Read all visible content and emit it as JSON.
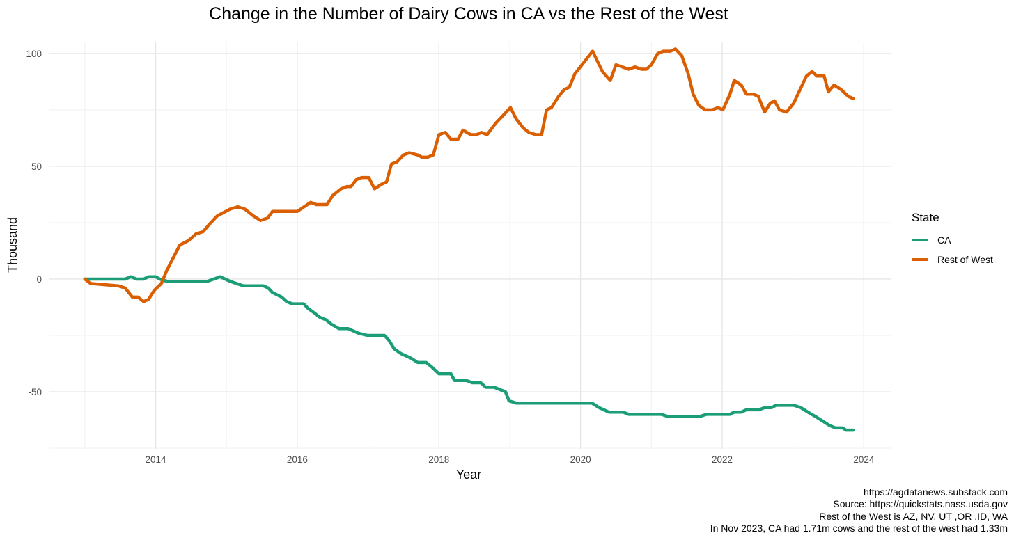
{
  "chart_data": {
    "type": "line",
    "title": "Change in the Number of Dairy Cows in CA vs the Rest of the West",
    "xlabel": "Year",
    "ylabel": "Thousand",
    "xlim": [
      2012.49,
      2024.39
    ],
    "ylim": [
      -75.3,
      105.2
    ],
    "x_ticks": [
      2014,
      2016,
      2018,
      2020,
      2022,
      2024
    ],
    "y_ticks": [
      -50,
      0,
      50,
      100
    ],
    "grid": true,
    "legend": {
      "title": "State",
      "placement": "right"
    },
    "series": [
      {
        "name": "CA",
        "color": "#1b9e77",
        "points": [
          [
            2013.0,
            0
          ],
          [
            2013.57,
            0
          ],
          [
            2013.65,
            1
          ],
          [
            2013.73,
            0
          ],
          [
            2013.83,
            0
          ],
          [
            2013.9,
            1
          ],
          [
            2014.0,
            1
          ],
          [
            2014.06,
            0
          ],
          [
            2014.16,
            -1
          ],
          [
            2014.73,
            -1
          ],
          [
            2014.91,
            1
          ],
          [
            2015.05,
            -1
          ],
          [
            2015.24,
            -3
          ],
          [
            2015.52,
            -3
          ],
          [
            2015.59,
            -4
          ],
          [
            2015.65,
            -6
          ],
          [
            2015.78,
            -8
          ],
          [
            2015.85,
            -10
          ],
          [
            2015.93,
            -11
          ],
          [
            2016.09,
            -11
          ],
          [
            2016.15,
            -13
          ],
          [
            2016.24,
            -15
          ],
          [
            2016.32,
            -17
          ],
          [
            2016.4,
            -18
          ],
          [
            2016.48,
            -20
          ],
          [
            2016.59,
            -22
          ],
          [
            2016.72,
            -22
          ],
          [
            2016.86,
            -24
          ],
          [
            2016.99,
            -25
          ],
          [
            2017.23,
            -25
          ],
          [
            2017.29,
            -27
          ],
          [
            2017.37,
            -31
          ],
          [
            2017.46,
            -33
          ],
          [
            2017.6,
            -35
          ],
          [
            2017.7,
            -37
          ],
          [
            2017.82,
            -37
          ],
          [
            2017.9,
            -39
          ],
          [
            2018.0,
            -42
          ],
          [
            2018.17,
            -42
          ],
          [
            2018.22,
            -45
          ],
          [
            2018.39,
            -45
          ],
          [
            2018.47,
            -46
          ],
          [
            2018.59,
            -46
          ],
          [
            2018.66,
            -48
          ],
          [
            2018.78,
            -48
          ],
          [
            2018.94,
            -50
          ],
          [
            2018.99,
            -54
          ],
          [
            2019.09,
            -55
          ],
          [
            2020.16,
            -55
          ],
          [
            2020.26,
            -57
          ],
          [
            2020.4,
            -59
          ],
          [
            2020.6,
            -59
          ],
          [
            2020.68,
            -60
          ],
          [
            2021.14,
            -60
          ],
          [
            2021.24,
            -61
          ],
          [
            2021.68,
            -61
          ],
          [
            2021.78,
            -60
          ],
          [
            2022.11,
            -60
          ],
          [
            2022.17,
            -59
          ],
          [
            2022.27,
            -59
          ],
          [
            2022.34,
            -58
          ],
          [
            2022.52,
            -58
          ],
          [
            2022.6,
            -57
          ],
          [
            2022.7,
            -57
          ],
          [
            2022.76,
            -56
          ],
          [
            2023.01,
            -56
          ],
          [
            2023.11,
            -57
          ],
          [
            2023.21,
            -59
          ],
          [
            2023.32,
            -61
          ],
          [
            2023.42,
            -63
          ],
          [
            2023.52,
            -65
          ],
          [
            2023.6,
            -66
          ],
          [
            2023.7,
            -66
          ],
          [
            2023.75,
            -67
          ],
          [
            2023.85,
            -67
          ]
        ]
      },
      {
        "name": "Rest of West",
        "color": "#d95f02",
        "points": [
          [
            2013.0,
            0
          ],
          [
            2013.08,
            -2
          ],
          [
            2013.47,
            -3
          ],
          [
            2013.57,
            -4
          ],
          [
            2013.67,
            -8
          ],
          [
            2013.75,
            -8
          ],
          [
            2013.83,
            -10
          ],
          [
            2013.9,
            -9
          ],
          [
            2013.98,
            -5
          ],
          [
            2014.08,
            -2
          ],
          [
            2014.16,
            4
          ],
          [
            2014.34,
            15
          ],
          [
            2014.46,
            17
          ],
          [
            2014.57,
            20
          ],
          [
            2014.67,
            21
          ],
          [
            2014.75,
            24
          ],
          [
            2014.87,
            28
          ],
          [
            2015.05,
            31
          ],
          [
            2015.16,
            32
          ],
          [
            2015.26,
            31
          ],
          [
            2015.38,
            28
          ],
          [
            2015.48,
            26
          ],
          [
            2015.58,
            27
          ],
          [
            2015.65,
            30
          ],
          [
            2016.0,
            30
          ],
          [
            2016.19,
            34
          ],
          [
            2016.27,
            33
          ],
          [
            2016.42,
            33
          ],
          [
            2016.5,
            37
          ],
          [
            2016.62,
            40
          ],
          [
            2016.7,
            41
          ],
          [
            2016.76,
            41
          ],
          [
            2016.83,
            44
          ],
          [
            2016.91,
            45
          ],
          [
            2017.01,
            45
          ],
          [
            2017.09,
            40
          ],
          [
            2017.19,
            42
          ],
          [
            2017.26,
            43
          ],
          [
            2017.33,
            51
          ],
          [
            2017.41,
            52
          ],
          [
            2017.5,
            55
          ],
          [
            2017.58,
            56
          ],
          [
            2017.7,
            55
          ],
          [
            2017.76,
            54
          ],
          [
            2017.84,
            54
          ],
          [
            2017.92,
            55
          ],
          [
            2018.0,
            64
          ],
          [
            2018.09,
            65
          ],
          [
            2018.17,
            62
          ],
          [
            2018.27,
            62
          ],
          [
            2018.34,
            66
          ],
          [
            2018.45,
            64
          ],
          [
            2018.53,
            64
          ],
          [
            2018.6,
            65
          ],
          [
            2018.68,
            64
          ],
          [
            2018.8,
            69
          ],
          [
            2018.92,
            73
          ],
          [
            2019.01,
            76
          ],
          [
            2019.09,
            71
          ],
          [
            2019.19,
            67
          ],
          [
            2019.27,
            65
          ],
          [
            2019.37,
            64
          ],
          [
            2019.45,
            64
          ],
          [
            2019.52,
            75
          ],
          [
            2019.59,
            76
          ],
          [
            2019.69,
            81
          ],
          [
            2019.77,
            84
          ],
          [
            2019.84,
            85
          ],
          [
            2019.92,
            91
          ],
          [
            2020.02,
            95
          ],
          [
            2020.17,
            101
          ],
          [
            2020.31,
            92
          ],
          [
            2020.42,
            88
          ],
          [
            2020.5,
            95
          ],
          [
            2020.68,
            93
          ],
          [
            2020.77,
            94
          ],
          [
            2020.86,
            93
          ],
          [
            2020.93,
            93
          ],
          [
            2021.0,
            95
          ],
          [
            2021.09,
            100
          ],
          [
            2021.17,
            101
          ],
          [
            2021.27,
            101
          ],
          [
            2021.34,
            102
          ],
          [
            2021.43,
            99
          ],
          [
            2021.52,
            91
          ],
          [
            2021.59,
            82
          ],
          [
            2021.67,
            77
          ],
          [
            2021.76,
            75
          ],
          [
            2021.86,
            75
          ],
          [
            2021.94,
            76
          ],
          [
            2022.01,
            75
          ],
          [
            2022.11,
            82
          ],
          [
            2022.17,
            88
          ],
          [
            2022.27,
            86
          ],
          [
            2022.34,
            82
          ],
          [
            2022.44,
            82
          ],
          [
            2022.51,
            81
          ],
          [
            2022.6,
            74
          ],
          [
            2022.68,
            78
          ],
          [
            2022.74,
            79
          ],
          [
            2022.81,
            75
          ],
          [
            2022.91,
            74
          ],
          [
            2023.01,
            78
          ],
          [
            2023.13,
            86
          ],
          [
            2023.19,
            90
          ],
          [
            2023.27,
            92
          ],
          [
            2023.34,
            90
          ],
          [
            2023.44,
            90
          ],
          [
            2023.5,
            83
          ],
          [
            2023.58,
            86
          ],
          [
            2023.68,
            84
          ],
          [
            2023.78,
            81
          ],
          [
            2023.85,
            80
          ]
        ]
      }
    ],
    "caption": [
      "https://agdatanews.substack.com",
      "Source: https://quickstats.nass.usda.gov",
      "Rest of the West is AZ, NV, UT ,OR ,ID, WA",
      "In Nov 2023, CA had 1.71m cows and the rest of the west had 1.33m"
    ]
  }
}
